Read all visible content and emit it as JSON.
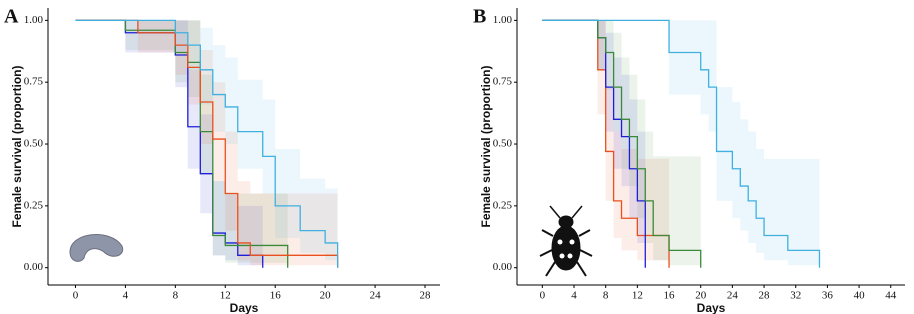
{
  "chart_data": [
    {
      "type": "step",
      "panel": "A",
      "x_label": "Days",
      "y_label": "Female survival (proportion)",
      "xlim": [
        -2.2,
        29.2
      ],
      "xticks": [
        0,
        4,
        8,
        12,
        16,
        20,
        24,
        28
      ],
      "ylim": [
        -0.07,
        1.05
      ],
      "yticks": [
        {
          "value": 0,
          "label": "0.00"
        },
        {
          "value": 0.25,
          "label": "0.25"
        },
        {
          "value": 0.5,
          "label": "0.50"
        },
        {
          "value": 0.75,
          "label": "0.75"
        },
        {
          "value": 1,
          "label": "1.00"
        }
      ],
      "series": [
        {
          "color": "#1e1ed8",
          "x": [
            0,
            4,
            8,
            9,
            10,
            11,
            12,
            13,
            15
          ],
          "values": [
            1,
            0.95,
            0.86,
            0.57,
            0.38,
            0.14,
            0.1,
            0.05,
            0
          ],
          "lower": [
            1,
            0.87,
            0.73,
            0.4,
            0.22,
            0.05,
            0.03,
            0.01,
            0
          ],
          "upper": [
            1,
            1,
            1,
            0.8,
            0.62,
            0.35,
            0.3,
            0.25,
            0.2
          ]
        },
        {
          "color": "#3a8a3a",
          "x": [
            0,
            4,
            8,
            9,
            10,
            11,
            12,
            17
          ],
          "values": [
            1,
            0.96,
            0.87,
            0.83,
            0.55,
            0.13,
            0.09,
            0
          ],
          "lower": [
            1,
            0.88,
            0.75,
            0.69,
            0.38,
            0.05,
            0.02,
            0
          ],
          "upper": [
            1,
            1,
            1,
            1,
            0.78,
            0.35,
            0.3,
            0.25
          ]
        },
        {
          "color": "#e8501e",
          "x": [
            0,
            5,
            8,
            9,
            10,
            11,
            12,
            13,
            14,
            21
          ],
          "values": [
            1,
            0.95,
            0.9,
            0.81,
            0.67,
            0.52,
            0.3,
            0.1,
            0.05,
            0
          ],
          "lower": [
            1,
            0.87,
            0.78,
            0.66,
            0.5,
            0.35,
            0.15,
            0.03,
            0.01,
            0
          ],
          "upper": [
            1,
            1,
            1,
            1,
            0.88,
            0.75,
            0.55,
            0.35,
            0.3,
            0.32
          ]
        },
        {
          "color": "#3fb0e0",
          "x": [
            0,
            8,
            9,
            10,
            11,
            12,
            13,
            15,
            16,
            18,
            20,
            21
          ],
          "values": [
            1,
            0.95,
            0.9,
            0.8,
            0.7,
            0.65,
            0.55,
            0.45,
            0.25,
            0.15,
            0.1,
            0
          ],
          "lower": [
            1,
            0.87,
            0.8,
            0.66,
            0.55,
            0.5,
            0.4,
            0.3,
            0.12,
            0.06,
            0.03,
            0
          ],
          "upper": [
            1,
            1,
            1,
            0.97,
            0.9,
            0.85,
            0.76,
            0.68,
            0.48,
            0.36,
            0.32,
            0.32
          ]
        }
      ]
    },
    {
      "type": "step",
      "panel": "B",
      "x_label": "Days",
      "y_label": "Female survival (proportion)",
      "xlim": [
        -3.2,
        45.8
      ],
      "xticks": [
        0,
        4,
        8,
        12,
        16,
        20,
        24,
        28,
        32,
        36,
        40,
        44
      ],
      "ylim": [
        -0.07,
        1.05
      ],
      "yticks": [
        {
          "value": 0,
          "label": "0.00"
        },
        {
          "value": 0.25,
          "label": "0.25"
        },
        {
          "value": 0.5,
          "label": "0.50"
        },
        {
          "value": 0.75,
          "label": "0.75"
        },
        {
          "value": 1,
          "label": "1.00"
        }
      ],
      "series": [
        {
          "color": "#e8501e",
          "x": [
            0,
            7,
            8,
            9,
            10,
            12,
            16
          ],
          "values": [
            1,
            0.8,
            0.47,
            0.27,
            0.2,
            0.13,
            0
          ],
          "lower": [
            1,
            0.62,
            0.27,
            0.12,
            0.07,
            0.03,
            0
          ],
          "upper": [
            1,
            1,
            0.73,
            0.55,
            0.48,
            0.44,
            0.44
          ]
        },
        {
          "color": "#1e1ed8",
          "x": [
            0,
            7,
            8,
            9,
            10,
            11,
            12,
            13
          ],
          "values": [
            1,
            0.93,
            0.73,
            0.6,
            0.53,
            0.4,
            0.27,
            0
          ],
          "lower": [
            1,
            0.8,
            0.55,
            0.4,
            0.33,
            0.2,
            0.1,
            0
          ],
          "upper": [
            1,
            1,
            0.95,
            0.85,
            0.78,
            0.68,
            0.55,
            0.45
          ]
        },
        {
          "color": "#3a8a3a",
          "x": [
            0,
            7,
            8,
            9,
            10,
            11,
            12,
            13,
            14,
            16,
            20
          ],
          "values": [
            1,
            0.93,
            0.87,
            0.73,
            0.6,
            0.53,
            0.4,
            0.27,
            0.13,
            0.07,
            0
          ],
          "lower": [
            1,
            0.8,
            0.72,
            0.55,
            0.4,
            0.33,
            0.2,
            0.1,
            0.03,
            0.01,
            0
          ],
          "upper": [
            1,
            1,
            1,
            0.95,
            0.85,
            0.78,
            0.68,
            0.55,
            0.45,
            0.45,
            0.45
          ]
        },
        {
          "color": "#3fb0e0",
          "x": [
            0,
            16,
            20,
            21,
            22,
            24,
            25,
            26,
            27,
            28,
            31,
            35
          ],
          "values": [
            1,
            0.87,
            0.8,
            0.73,
            0.47,
            0.4,
            0.33,
            0.27,
            0.2,
            0.13,
            0.07,
            0
          ],
          "lower": [
            1,
            0.7,
            0.62,
            0.55,
            0.27,
            0.2,
            0.15,
            0.1,
            0.06,
            0.03,
            0.01,
            0
          ],
          "upper": [
            1,
            1,
            1,
            1,
            0.73,
            0.67,
            0.6,
            0.55,
            0.48,
            0.44,
            0.44,
            0.44
          ]
        }
      ]
    }
  ]
}
